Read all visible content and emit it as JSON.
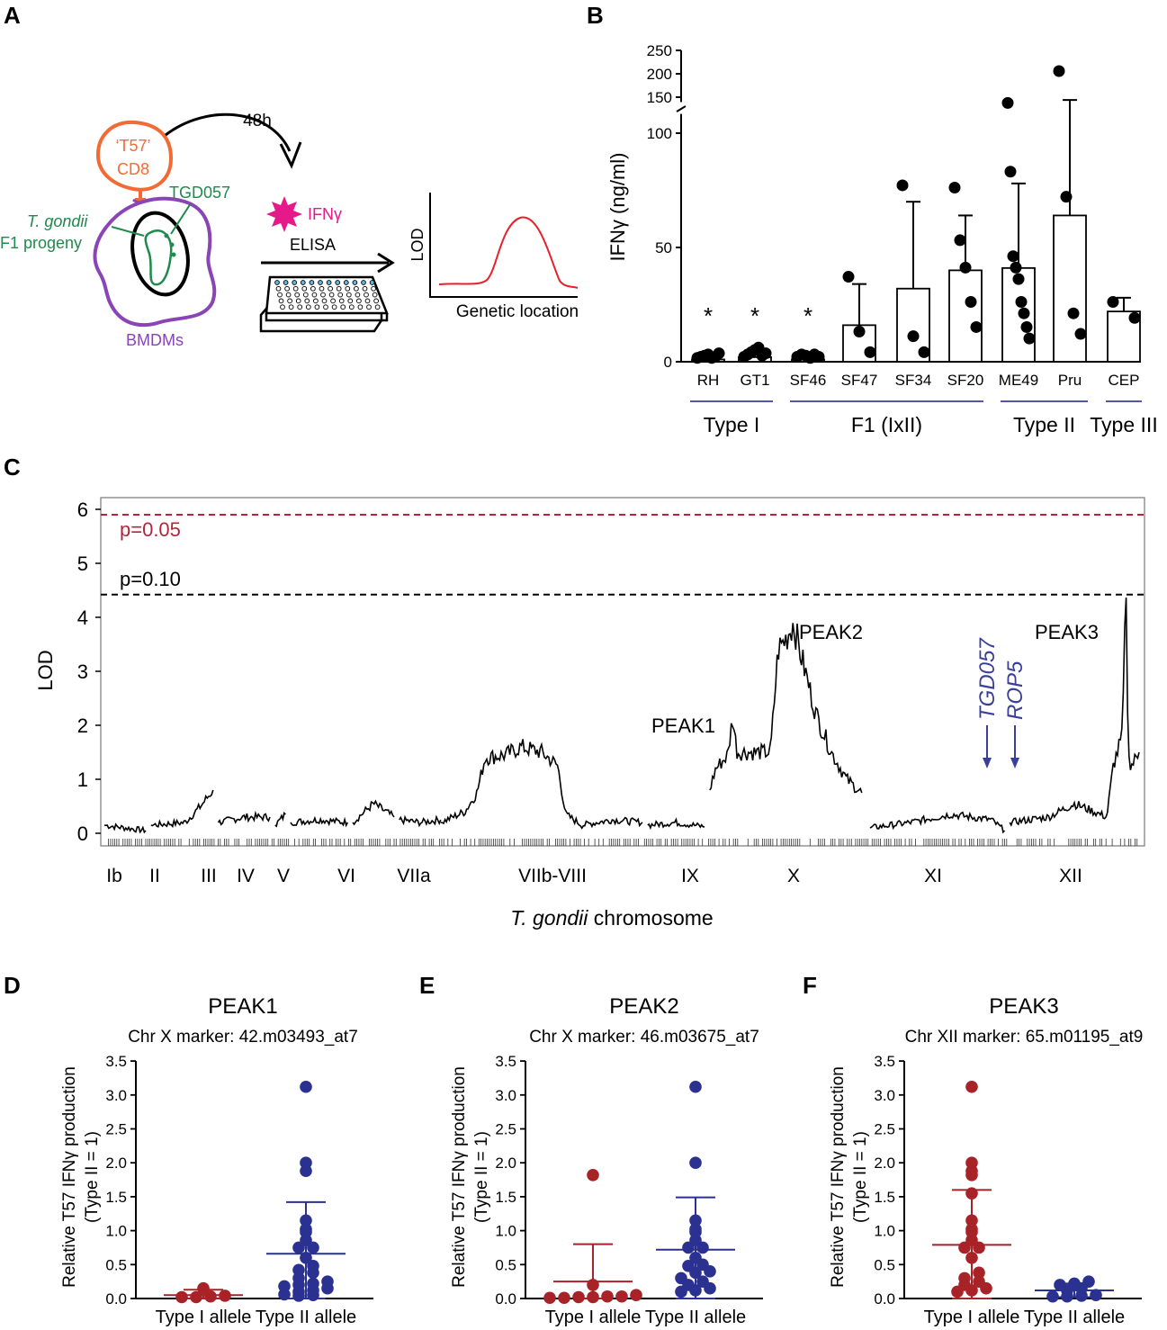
{
  "panel_labels": [
    "A",
    "B",
    "C",
    "D",
    "E",
    "F"
  ],
  "schematic": {
    "time": "48h",
    "cd8_line1": "‘T57’",
    "cd8_line2": "CD8",
    "antigen": "TGD057",
    "parasite_line1": "T. gondii",
    "parasite_line2": "F1 progeny",
    "cells": "BMDMs",
    "cytokine": "IFNγ",
    "assay": "ELISA",
    "lod_label": "LOD",
    "x_label": "Genetic location",
    "colors": {
      "cd8": "#f26b35",
      "parasite": "#1f8a4c",
      "cell": "#8a44b5",
      "ifng": "#e6198a",
      "curve": "#e8202a"
    }
  },
  "chart_data": [
    {
      "id": "B",
      "type": "bar",
      "ylabel": "IFNγ (ng/ml)",
      "y_ticks": [
        "0",
        "50",
        "100",
        "150",
        "200",
        "250"
      ],
      "ylim": [
        0,
        250
      ],
      "axis_break_at": 110,
      "categories": [
        "RH",
        "GT1",
        "SF46",
        "SF47",
        "SF34",
        "SF20",
        "ME49",
        "Pru",
        "CEP"
      ],
      "means": [
        1,
        2,
        1,
        16,
        32,
        40,
        41,
        64,
        22
      ],
      "sd": [
        1,
        2,
        1,
        18,
        38,
        24,
        37,
        80,
        6
      ],
      "points": [
        [
          0.5,
          1,
          1.5,
          2,
          0.5,
          1,
          2.5
        ],
        [
          1,
          2,
          3,
          4,
          5,
          1.5,
          2.5
        ],
        [
          1,
          2,
          1.5,
          0.5,
          2,
          1
        ],
        [
          36,
          12,
          3
        ],
        [
          76,
          10,
          3
        ],
        [
          75,
          52,
          40,
          25,
          14
        ],
        [
          132,
          82,
          45,
          40,
          35,
          25,
          20,
          14,
          9
        ],
        [
          200,
          71,
          20,
          11
        ],
        [
          25,
          18
        ]
      ],
      "stars": [
        "*",
        "*",
        "*",
        "",
        "",
        "",
        "",
        "",
        ""
      ],
      "groups": [
        {
          "label": "Type I",
          "from": 0,
          "to": 1
        },
        {
          "label": "F1 (IxII)",
          "from": 2,
          "to": 5
        },
        {
          "label": "Type II",
          "from": 6,
          "to": 7
        },
        {
          "label": "Type III",
          "from": 8,
          "to": 8
        }
      ],
      "colors": {
        "line": "#3b3f98",
        "dot": "#000000"
      }
    },
    {
      "id": "C",
      "type": "line",
      "xlabel_italic": "T. gondii",
      "xlabel_rest": " chromosome",
      "ylabel": "LOD",
      "ylim": [
        0,
        6.3
      ],
      "y_ticks": [
        "0",
        "1",
        "2",
        "3",
        "4",
        "5",
        "6"
      ],
      "thresholds": [
        {
          "label": "p=0.05",
          "value": 5.9,
          "color": "#b0273b"
        },
        {
          "label": "p=0.10",
          "value": 4.42,
          "color": "#000000"
        }
      ],
      "chromosomes": [
        "Ib",
        "II",
        "III",
        "IV",
        "V",
        "VI",
        "VIIa",
        "VIIb-VIII",
        "IX",
        "X",
        "XI",
        "XII"
      ],
      "segments": [
        {
          "chr": "Ib",
          "from": 0.0,
          "to": 0.04,
          "knots": [
            [
              0,
              0.15
            ],
            [
              0.5,
              0.1
            ],
            [
              1,
              0.05
            ]
          ]
        },
        {
          "chr": "II",
          "from": 0.045,
          "to": 0.105,
          "knots": [
            [
              0,
              0.15
            ],
            [
              0.55,
              0.2
            ],
            [
              0.8,
              0.5
            ],
            [
              1,
              0.8
            ]
          ]
        },
        {
          "chr": "III",
          "from": 0.11,
          "to": 0.16,
          "knots": [
            [
              0,
              0.2
            ],
            [
              0.5,
              0.3
            ],
            [
              1,
              0.3
            ]
          ]
        },
        {
          "chr": "IV",
          "from": 0.165,
          "to": 0.175,
          "knots": [
            [
              0,
              0.15
            ],
            [
              1,
              0.35
            ]
          ]
        },
        {
          "chr": "V",
          "from": 0.18,
          "to": 0.235,
          "knots": [
            [
              0,
              0.2
            ],
            [
              0.5,
              0.25
            ],
            [
              1,
              0.2
            ]
          ]
        },
        {
          "chr": "VI",
          "from": 0.24,
          "to": 0.28,
          "knots": [
            [
              0,
              0.2
            ],
            [
              0.5,
              0.55
            ],
            [
              1,
              0.3
            ]
          ]
        },
        {
          "chr": "VIIa",
          "from": 0.285,
          "to": 0.325,
          "knots": [
            [
              0,
              0.25
            ],
            [
              0.5,
              0.2
            ],
            [
              1,
              0.25
            ]
          ]
        },
        {
          "chr": "VIIb-VIII",
          "from": 0.325,
          "to": 0.52,
          "knots": [
            [
              0,
              0.2
            ],
            [
              0.12,
              0.4
            ],
            [
              0.18,
              0.75
            ],
            [
              0.22,
              1.4
            ],
            [
              0.32,
              1.45
            ],
            [
              0.4,
              1.6
            ],
            [
              0.5,
              1.5
            ],
            [
              0.58,
              1.25
            ],
            [
              0.62,
              0.35
            ],
            [
              0.7,
              0.15
            ],
            [
              0.85,
              0.25
            ],
            [
              1,
              0.2
            ]
          ]
        },
        {
          "chr": "IX",
          "from": 0.525,
          "to": 0.58,
          "knots": [
            [
              0,
              0.15
            ],
            [
              0.5,
              0.2
            ],
            [
              1,
              0.12
            ]
          ]
        },
        {
          "chr": "X",
          "from": 0.585,
          "to": 0.732,
          "knots": [
            [
              0,
              0.8
            ],
            [
              0.04,
              1.2
            ],
            [
              0.12,
              1.45
            ],
            [
              0.15,
              2.15
            ],
            [
              0.18,
              1.5
            ],
            [
              0.4,
              1.5
            ],
            [
              0.45,
              3.4
            ],
            [
              0.5,
              3.6
            ],
            [
              0.55,
              3.9
            ],
            [
              0.6,
              3.3
            ],
            [
              0.7,
              2.2
            ],
            [
              0.8,
              1.5
            ],
            [
              0.9,
              1.0
            ],
            [
              1,
              0.75
            ]
          ]
        },
        {
          "chr": "XI",
          "from": 0.74,
          "to": 0.87,
          "knots": [
            [
              0,
              0.1
            ],
            [
              0.3,
              0.2
            ],
            [
              0.6,
              0.35
            ],
            [
              0.9,
              0.25
            ],
            [
              1,
              0.05
            ]
          ]
        },
        {
          "chr": "XII",
          "from": 0.875,
          "to": 1.0,
          "knots": [
            [
              0,
              0.2
            ],
            [
              0.3,
              0.3
            ],
            [
              0.5,
              0.55
            ],
            [
              0.75,
              0.3
            ],
            [
              0.8,
              1.25
            ],
            [
              0.87,
              1.8
            ],
            [
              0.9,
              4.6
            ],
            [
              0.91,
              2.2
            ],
            [
              0.93,
              1.2
            ],
            [
              1,
              1.5
            ]
          ]
        }
      ],
      "peaks": [
        {
          "label": "PEAK1",
          "x": 0.605,
          "lod": 2.15
        },
        {
          "label": "PEAK2",
          "x": 0.665,
          "lod": 3.9
        },
        {
          "label": "PEAK3",
          "x": 0.985,
          "lod": 4.6
        }
      ],
      "gene_markers": [
        {
          "label": "TGD057",
          "x": 0.852,
          "lod": 1.25
        },
        {
          "label": "ROP5",
          "x": 0.884,
          "lod": 1.25
        }
      ],
      "colors": {
        "line": "#000000",
        "gene": "#3b3f98"
      }
    },
    {
      "id": "D",
      "type": "scatter",
      "title": "PEAK1",
      "subtitle": "Chr X marker: 42.m03493_at7",
      "ylabel_1": "Relative T57 IFNγ production",
      "ylabel_2": "(Type II = 1)",
      "y_ticks": [
        "0.0",
        "0.5",
        "1.0",
        "1.5",
        "2.0",
        "2.5",
        "3.0",
        "3.5"
      ],
      "ylim": [
        0,
        3.5
      ],
      "categories": [
        "Type I allele",
        "Type II allele"
      ],
      "groups": [
        {
          "mean": 0.05,
          "sd": 0.08,
          "color": "#a82328",
          "values": [
            0.02,
            0.03,
            0.15,
            0.04,
            0.02
          ]
        },
        {
          "mean": 0.66,
          "sd": 0.76,
          "color": "#2b3190",
          "values": [
            3.12,
            2.0,
            1.88,
            1.15,
            1.02,
            0.98,
            0.86,
            0.75,
            0.75,
            0.6,
            0.48,
            0.42,
            0.38,
            0.3,
            0.25,
            0.22,
            0.2,
            0.18,
            0.15,
            0.12,
            0.1,
            0.06,
            0.05,
            0.04
          ]
        }
      ]
    },
    {
      "id": "E",
      "type": "scatter",
      "title": "PEAK2",
      "subtitle": "Chr X marker: 46.m03675_at7",
      "ylabel_1": "Relative T57 IFNγ production",
      "ylabel_2": "(Type II = 1)",
      "y_ticks": [
        "0.0",
        "0.5",
        "1.0",
        "1.5",
        "2.0",
        "2.5",
        "3.0",
        "3.5"
      ],
      "ylim": [
        0,
        3.5
      ],
      "categories": [
        "Type I allele",
        "Type II allele"
      ],
      "groups": [
        {
          "mean": 0.25,
          "sd": 0.55,
          "color": "#a82328",
          "values": [
            1.82,
            0.2,
            0.05,
            0.03,
            0.02,
            0.01,
            0.02,
            0.03,
            0.01
          ]
        },
        {
          "mean": 0.72,
          "sd": 0.77,
          "color": "#2b3190",
          "values": [
            3.12,
            2.0,
            1.15,
            1.02,
            0.98,
            0.86,
            0.75,
            0.75,
            0.6,
            0.5,
            0.48,
            0.4,
            0.38,
            0.3,
            0.25,
            0.2,
            0.15,
            0.12,
            0.1
          ]
        }
      ]
    },
    {
      "id": "F",
      "type": "scatter",
      "title": "PEAK3",
      "subtitle": "Chr XII marker: 65.m01195_at9",
      "ylabel_1": "Relative T57 IFNγ production",
      "ylabel_2": "(Type II = 1)",
      "y_ticks": [
        "0.0",
        "0.5",
        "1.0",
        "1.5",
        "2.0",
        "2.5",
        "3.0",
        "3.5"
      ],
      "ylim": [
        0,
        3.5
      ],
      "categories": [
        "Type I allele",
        "Type II allele"
      ],
      "groups": [
        {
          "mean": 0.79,
          "sd": 0.81,
          "color": "#a82328",
          "values": [
            3.12,
            2.0,
            1.88,
            1.82,
            1.55,
            1.15,
            1.02,
            0.98,
            0.86,
            0.75,
            0.75,
            0.6,
            0.38,
            0.3,
            0.25,
            0.2,
            0.15,
            0.12,
            0.1
          ]
        },
        {
          "mean": 0.12,
          "sd": 0.1,
          "color": "#2b3190",
          "values": [
            0.25,
            0.22,
            0.2,
            0.15,
            0.12,
            0.05,
            0.04,
            0.03,
            0.03
          ]
        }
      ]
    }
  ]
}
